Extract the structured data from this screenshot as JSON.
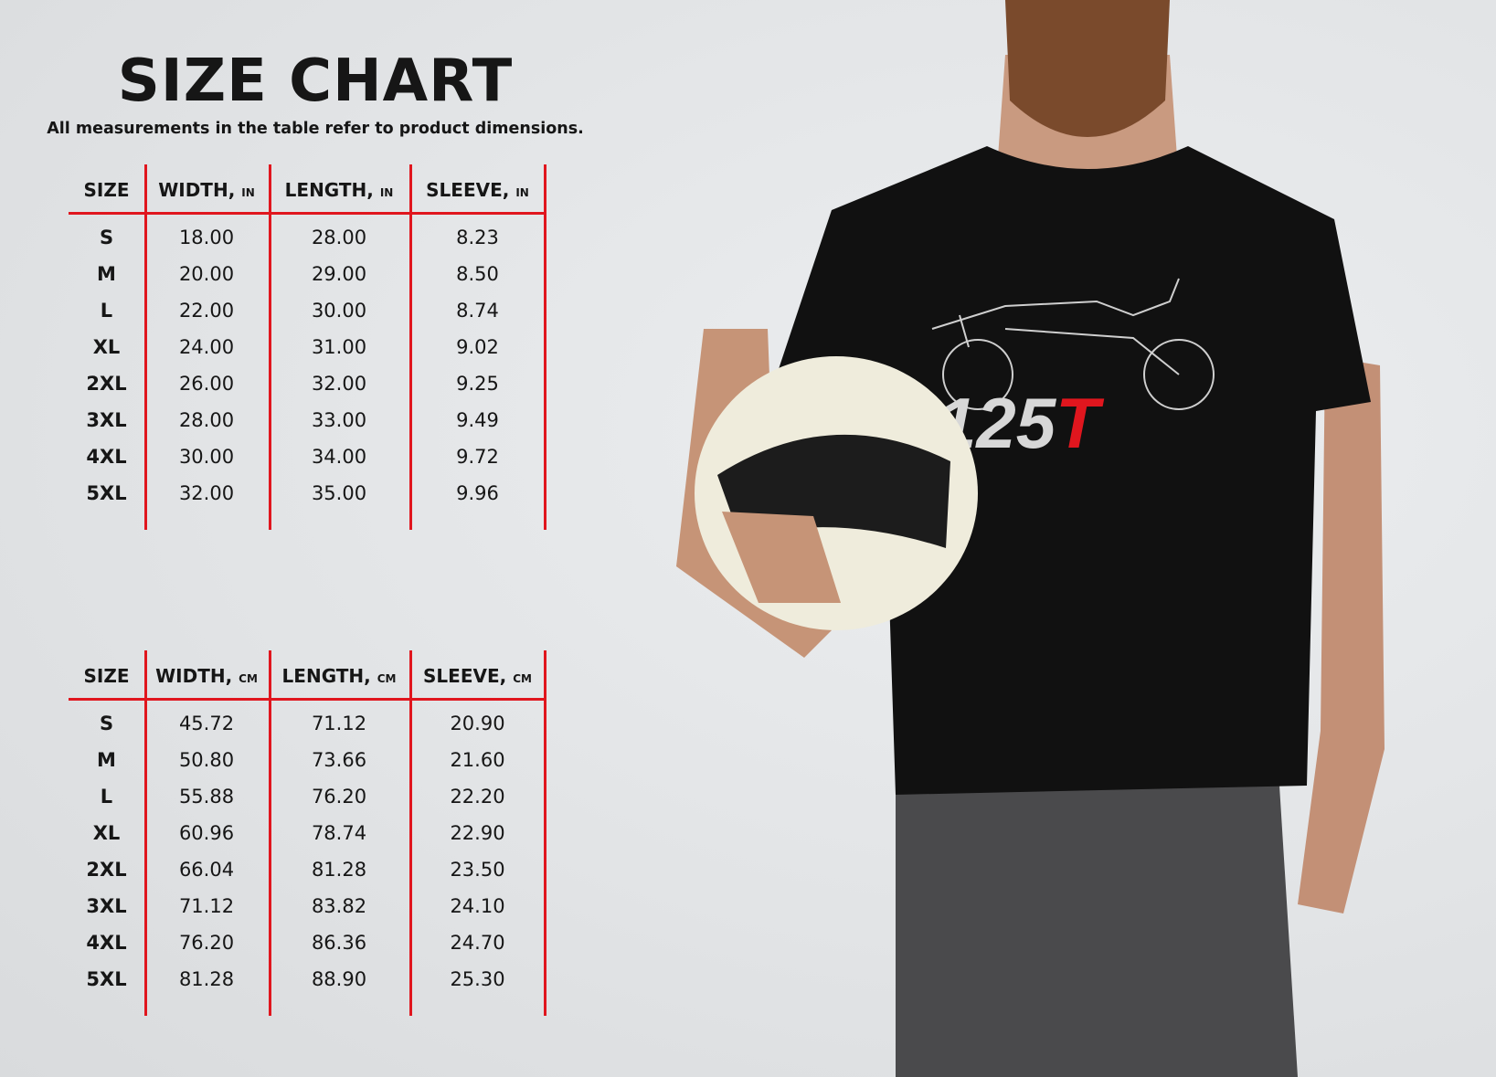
{
  "title": "SIZE CHART",
  "subtitle": "All measurements in the table refer to product dimensions.",
  "accent_color": "#e0161e",
  "tables": [
    {
      "headers": [
        {
          "label": "SIZE",
          "unit": ""
        },
        {
          "label": "WIDTH,",
          "unit": "IN"
        },
        {
          "label": "LENGTH,",
          "unit": "IN"
        },
        {
          "label": "SLEEVE,",
          "unit": "IN"
        }
      ],
      "rows": [
        [
          "S",
          "18.00",
          "28.00",
          "8.23"
        ],
        [
          "M",
          "20.00",
          "29.00",
          "8.50"
        ],
        [
          "L",
          "22.00",
          "30.00",
          "8.74"
        ],
        [
          "XL",
          "24.00",
          "31.00",
          "9.02"
        ],
        [
          "2XL",
          "26.00",
          "32.00",
          "9.25"
        ],
        [
          "3XL",
          "28.00",
          "33.00",
          "9.49"
        ],
        [
          "4XL",
          "30.00",
          "34.00",
          "9.72"
        ],
        [
          "5XL",
          "32.00",
          "35.00",
          "9.96"
        ]
      ]
    },
    {
      "headers": [
        {
          "label": "SIZE",
          "unit": ""
        },
        {
          "label": "WIDTH,",
          "unit": "CM"
        },
        {
          "label": "LENGTH,",
          "unit": "CM"
        },
        {
          "label": "SLEEVE,",
          "unit": "CM"
        }
      ],
      "rows": [
        [
          "S",
          "45.72",
          "71.12",
          "20.90"
        ],
        [
          "M",
          "50.80",
          "73.66",
          "21.60"
        ],
        [
          "L",
          "55.88",
          "76.20",
          "22.20"
        ],
        [
          "XL",
          "60.96",
          "78.74",
          "22.90"
        ],
        [
          "2XL",
          "66.04",
          "81.28",
          "23.50"
        ],
        [
          "3XL",
          "71.12",
          "83.82",
          "24.10"
        ],
        [
          "4XL",
          "76.20",
          "86.36",
          "24.70"
        ],
        [
          "5XL",
          "81.28",
          "88.90",
          "25.30"
        ]
      ]
    }
  ],
  "photo": {
    "shirt_graphic_text": "125T",
    "shirt_color": "#111111",
    "helmet_color": "#efecdc"
  }
}
